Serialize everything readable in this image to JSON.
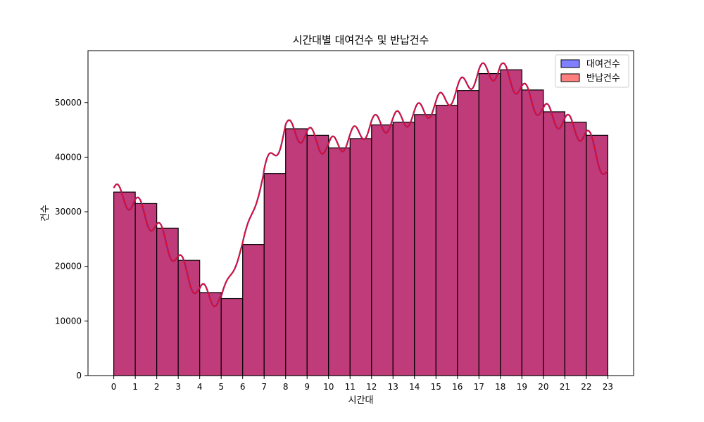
{
  "chart_data": {
    "type": "bar",
    "title": "시간대별 대여건수 및 반납건수",
    "xlabel": "시간대",
    "ylabel": "건수",
    "categories": [
      "0",
      "1",
      "2",
      "3",
      "4",
      "5",
      "6",
      "7",
      "8",
      "9",
      "10",
      "11",
      "12",
      "13",
      "14",
      "15",
      "16",
      "17",
      "18",
      "19",
      "20",
      "21",
      "22",
      "23"
    ],
    "x": [
      0,
      1,
      2,
      3,
      4,
      5,
      6,
      7,
      8,
      9,
      10,
      11,
      12,
      13,
      14,
      15,
      16,
      17,
      18,
      19,
      20,
      21,
      22,
      23
    ],
    "ylim": [
      0,
      59500
    ],
    "yticks": [
      0,
      10000,
      20000,
      30000,
      40000,
      50000
    ],
    "ytick_labels": [
      "0",
      "10000",
      "20000",
      "30000",
      "40000",
      "50000"
    ],
    "legend_position": "top-right",
    "grid": false,
    "series": [
      {
        "name": "대여건수",
        "color": "#0000ff",
        "values": [
          33600,
          31500,
          27000,
          21100,
          15200,
          14100,
          24000,
          37000,
          45200,
          44000,
          41700,
          43400,
          45900,
          46400,
          47800,
          49500,
          52200,
          55300,
          56000,
          52300,
          48300,
          46400,
          44000,
          36700
        ]
      },
      {
        "name": "반납건수",
        "color": "#ff0000",
        "values": [
          33600,
          31500,
          27000,
          21100,
          15200,
          14100,
          24000,
          37000,
          45200,
          44000,
          41700,
          43400,
          45900,
          46400,
          47800,
          49500,
          52200,
          55300,
          56000,
          52300,
          48300,
          46400,
          44000,
          36700
        ]
      }
    ],
    "overlap_color": "#c03b7a",
    "kde_line_color": "#e0102a"
  }
}
